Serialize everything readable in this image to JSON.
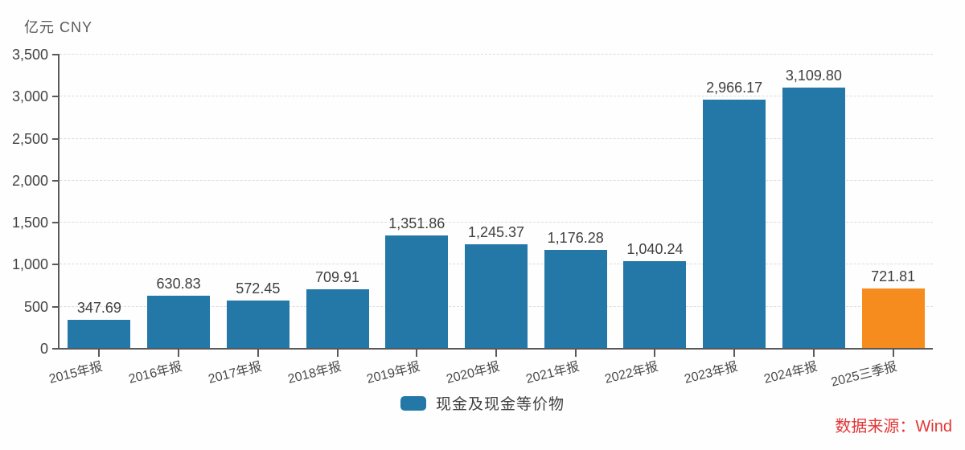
{
  "chart": {
    "unit_label": "亿元 CNY"
  },
  "legend": {
    "label": "现金及现金等价物"
  },
  "source": {
    "label": "数据来源：Wind"
  },
  "chart_data": {
    "type": "bar",
    "title": "",
    "xlabel": "",
    "ylabel": "亿元 CNY",
    "ylim": [
      0,
      3500
    ],
    "grid": "dashed-horizontal",
    "legend_position": "bottom-center",
    "categories": [
      "2015年报",
      "2016年报",
      "2017年报",
      "2018年报",
      "2019年报",
      "2020年报",
      "2021年报",
      "2022年报",
      "2023年报",
      "2024年报",
      "2025三季报"
    ],
    "values": [
      347.69,
      630.83,
      572.45,
      709.91,
      1351.86,
      1245.37,
      1176.28,
      1040.24,
      2966.17,
      3109.8,
      721.81
    ],
    "value_labels": [
      "347.69",
      "630.83",
      "572.45",
      "709.91",
      "1,351.86",
      "1,245.37",
      "1,176.28",
      "1,040.24",
      "2,966.17",
      "3,109.80",
      "721.81"
    ],
    "series_name": "现金及现金等价物",
    "bar_color": "#2478a8",
    "highlight_color": "#f68b1e",
    "highlight_index": 10,
    "yticks": [
      {
        "value": 0,
        "label": "0"
      },
      {
        "value": 500,
        "label": "500"
      },
      {
        "value": 1000,
        "label": "1,000"
      },
      {
        "value": 1500,
        "label": "1,500"
      },
      {
        "value": 2000,
        "label": "2,000"
      },
      {
        "value": 2500,
        "label": "2,500"
      },
      {
        "value": 3000,
        "label": "3,000"
      },
      {
        "value": 3500,
        "label": "3,500"
      }
    ]
  }
}
